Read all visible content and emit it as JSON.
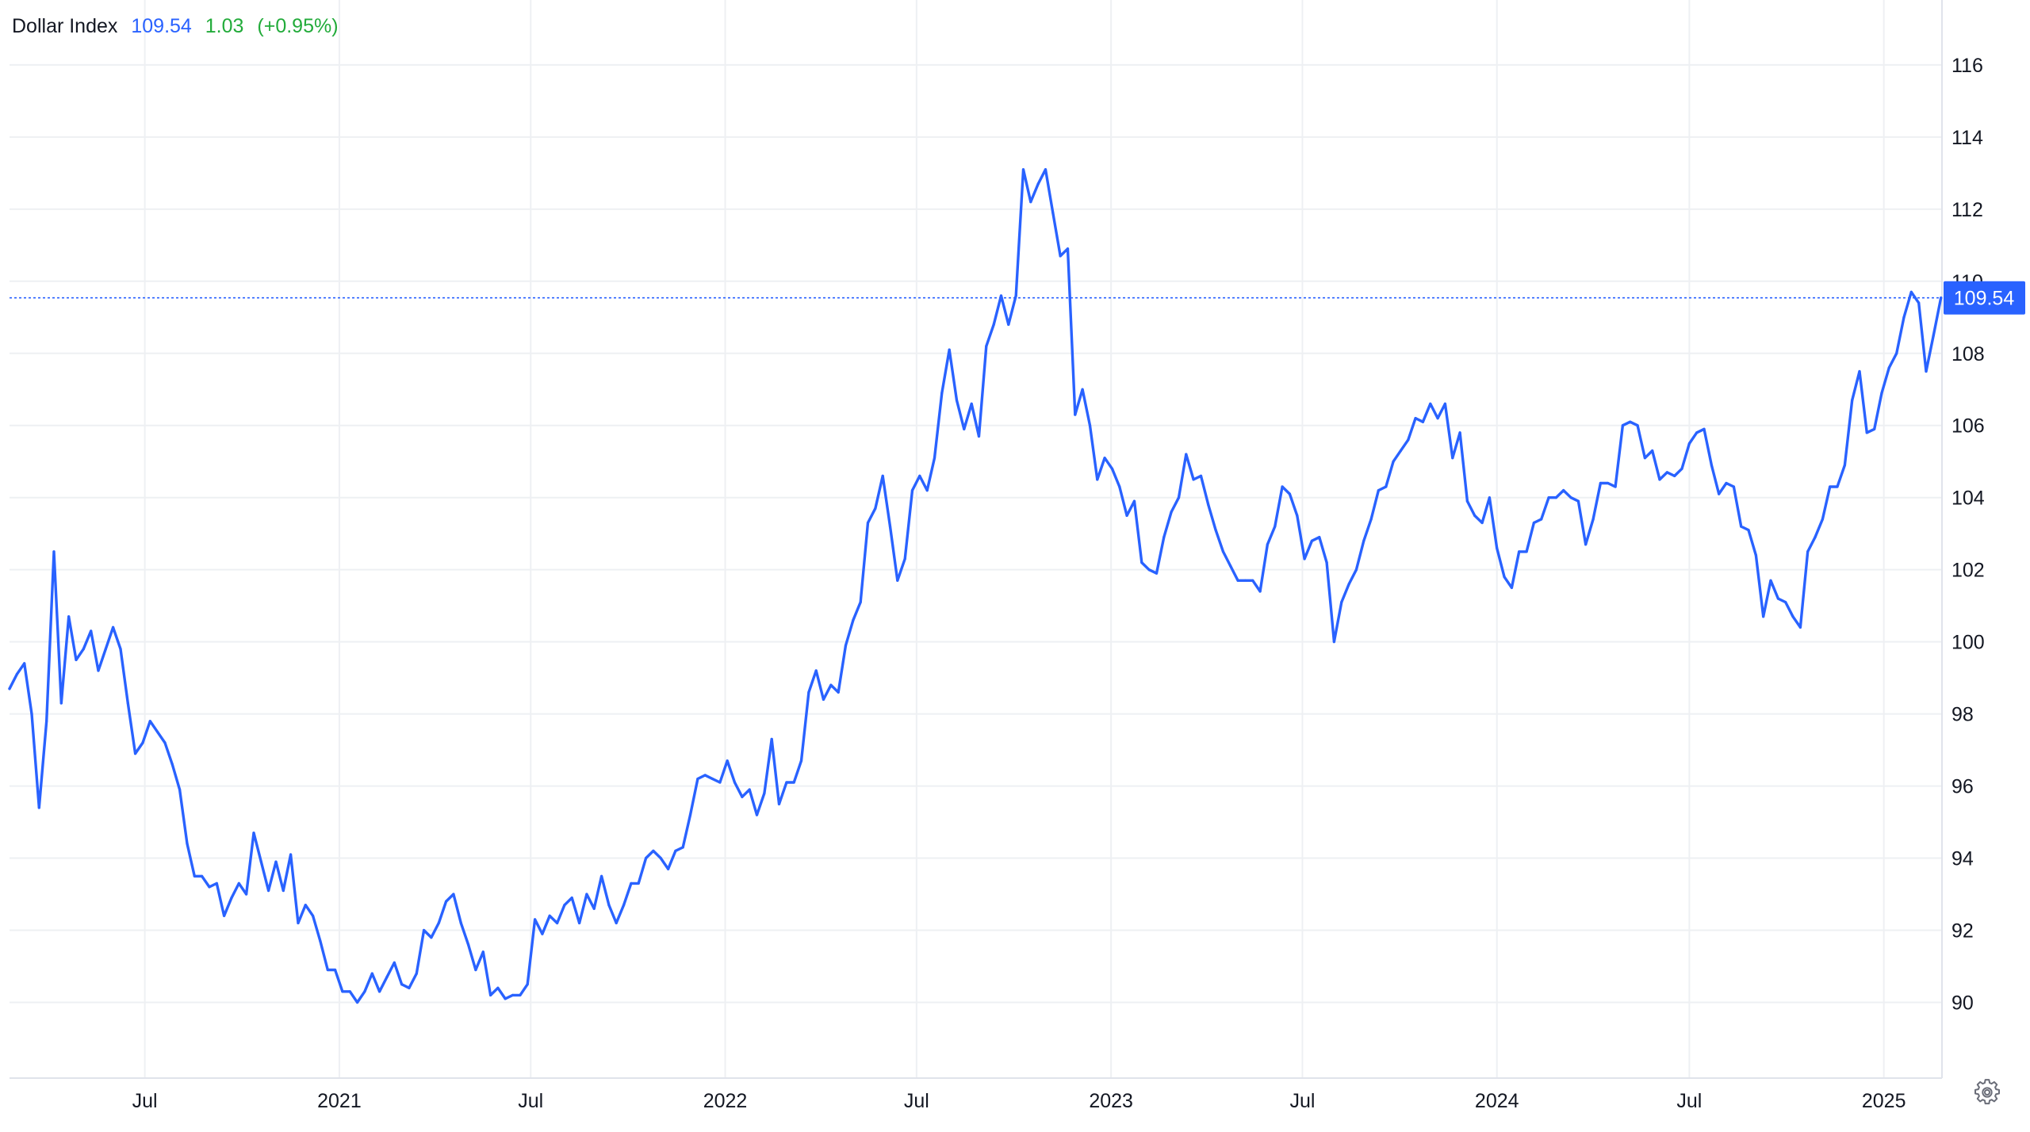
{
  "legend": {
    "name": "Dollar Index",
    "last": "109.54",
    "change": "1.03",
    "change_pct": "(+0.95%)"
  },
  "price_label": "109.54",
  "colors": {
    "line": "#2962ff",
    "grid": "#eef0f3",
    "axis_text": "#131722",
    "positive": "#22ab3a",
    "badge_bg": "#2962ff",
    "badge_text": "#ffffff"
  },
  "settings_icon": "gear-icon",
  "chart_data": {
    "type": "line",
    "title": "",
    "xlabel": "",
    "ylabel": "",
    "ylim": [
      87.9,
      117.8
    ],
    "xlim": [
      "2020-02-24",
      "2025-02-25"
    ],
    "y_ticks": [
      90,
      92,
      94,
      96,
      98,
      100,
      102,
      104,
      106,
      108,
      110,
      112,
      114,
      116
    ],
    "y_tick_labels": [
      "90",
      "92",
      "94",
      "96",
      "98",
      "100",
      "102",
      "104",
      "106",
      "108",
      "110",
      "112",
      "114",
      "116"
    ],
    "x_ticks": [
      {
        "date": "2020-07-01",
        "label": "Jul"
      },
      {
        "date": "2021-01-01",
        "label": "2021"
      },
      {
        "date": "2021-07-01",
        "label": "Jul"
      },
      {
        "date": "2022-01-01",
        "label": "2022"
      },
      {
        "date": "2022-07-01",
        "label": "Jul"
      },
      {
        "date": "2023-01-01",
        "label": "2023"
      },
      {
        "date": "2023-07-01",
        "label": "Jul"
      },
      {
        "date": "2024-01-01",
        "label": "2024"
      },
      {
        "date": "2024-07-01",
        "label": "Jul"
      },
      {
        "date": "2025-01-01",
        "label": "2025"
      }
    ],
    "grid": true,
    "y_axis_side": "right",
    "current_value": 109.54,
    "series": [
      {
        "x": [
          "2020-02-24",
          "2020-03-02",
          "2020-03-09",
          "2020-03-16",
          "2020-03-23",
          "2020-03-30",
          "2020-04-06",
          "2020-04-13",
          "2020-04-20",
          "2020-04-27",
          "2020-05-04",
          "2020-05-11",
          "2020-05-18",
          "2020-05-25",
          "2020-06-01",
          "2020-06-08",
          "2020-06-15",
          "2020-06-22",
          "2020-06-29",
          "2020-07-06",
          "2020-07-13",
          "2020-07-20",
          "2020-07-27",
          "2020-08-03",
          "2020-08-10",
          "2020-08-17",
          "2020-08-24",
          "2020-08-31",
          "2020-09-07",
          "2020-09-14",
          "2020-09-21",
          "2020-09-28",
          "2020-10-05",
          "2020-10-12",
          "2020-10-19",
          "2020-10-26",
          "2020-11-02",
          "2020-11-09",
          "2020-11-16",
          "2020-11-23",
          "2020-11-30",
          "2020-12-07",
          "2020-12-14",
          "2020-12-21",
          "2020-12-28",
          "2021-01-04",
          "2021-01-11",
          "2021-01-18",
          "2021-01-25",
          "2021-02-01",
          "2021-02-08",
          "2021-02-15",
          "2021-02-22",
          "2021-03-01",
          "2021-03-08",
          "2021-03-15",
          "2021-03-22",
          "2021-03-29",
          "2021-04-05",
          "2021-04-12",
          "2021-04-19",
          "2021-04-26",
          "2021-05-03",
          "2021-05-10",
          "2021-05-17",
          "2021-05-24",
          "2021-05-31",
          "2021-06-07",
          "2021-06-14",
          "2021-06-21",
          "2021-06-28",
          "2021-07-05",
          "2021-07-12",
          "2021-07-19",
          "2021-07-26",
          "2021-08-02",
          "2021-08-09",
          "2021-08-16",
          "2021-08-23",
          "2021-08-30",
          "2021-09-06",
          "2021-09-13",
          "2021-09-20",
          "2021-09-27",
          "2021-10-04",
          "2021-10-11",
          "2021-10-18",
          "2021-10-25",
          "2021-11-01",
          "2021-11-08",
          "2021-11-15",
          "2021-11-22",
          "2021-11-29",
          "2021-12-06",
          "2021-12-13",
          "2021-12-20",
          "2021-12-27",
          "2022-01-03",
          "2022-01-10",
          "2022-01-17",
          "2022-01-24",
          "2022-01-31",
          "2022-02-07",
          "2022-02-14",
          "2022-02-21",
          "2022-02-28",
          "2022-03-07",
          "2022-03-14",
          "2022-03-21",
          "2022-03-28",
          "2022-04-04",
          "2022-04-11",
          "2022-04-18",
          "2022-04-25",
          "2022-05-02",
          "2022-05-09",
          "2022-05-16",
          "2022-05-23",
          "2022-05-30",
          "2022-06-06",
          "2022-06-13",
          "2022-06-20",
          "2022-06-27",
          "2022-07-04",
          "2022-07-11",
          "2022-07-18",
          "2022-07-25",
          "2022-08-01",
          "2022-08-08",
          "2022-08-15",
          "2022-08-22",
          "2022-08-29",
          "2022-09-05",
          "2022-09-12",
          "2022-09-19",
          "2022-09-26",
          "2022-10-03",
          "2022-10-10",
          "2022-10-17",
          "2022-10-24",
          "2022-10-31",
          "2022-11-07",
          "2022-11-14",
          "2022-11-21",
          "2022-11-28",
          "2022-12-05",
          "2022-12-12",
          "2022-12-19",
          "2022-12-26",
          "2023-01-02",
          "2023-01-09",
          "2023-01-16",
          "2023-01-23",
          "2023-01-30",
          "2023-02-06",
          "2023-02-13",
          "2023-02-20",
          "2023-02-27",
          "2023-03-06",
          "2023-03-13",
          "2023-03-20",
          "2023-03-27",
          "2023-04-03",
          "2023-04-10",
          "2023-04-17",
          "2023-04-24",
          "2023-05-01",
          "2023-05-08",
          "2023-05-15",
          "2023-05-22",
          "2023-05-29",
          "2023-06-05",
          "2023-06-12",
          "2023-06-19",
          "2023-06-26",
          "2023-07-03",
          "2023-07-10",
          "2023-07-17",
          "2023-07-24",
          "2023-07-31",
          "2023-08-07",
          "2023-08-14",
          "2023-08-21",
          "2023-08-28",
          "2023-09-04",
          "2023-09-11",
          "2023-09-18",
          "2023-09-25",
          "2023-10-02",
          "2023-10-09",
          "2023-10-16",
          "2023-10-23",
          "2023-10-30",
          "2023-11-06",
          "2023-11-13",
          "2023-11-20",
          "2023-11-27",
          "2023-12-04",
          "2023-12-11",
          "2023-12-18",
          "2023-12-25",
          "2024-01-01",
          "2024-01-08",
          "2024-01-15",
          "2024-01-22",
          "2024-01-29",
          "2024-02-05",
          "2024-02-12",
          "2024-02-19",
          "2024-02-26",
          "2024-03-04",
          "2024-03-11",
          "2024-03-18",
          "2024-03-25",
          "2024-04-01",
          "2024-04-08",
          "2024-04-15",
          "2024-04-22",
          "2024-04-29",
          "2024-05-06",
          "2024-05-13",
          "2024-05-20",
          "2024-05-27",
          "2024-06-03",
          "2024-06-10",
          "2024-06-17",
          "2024-06-24",
          "2024-07-01",
          "2024-07-08",
          "2024-07-15",
          "2024-07-22",
          "2024-07-29",
          "2024-08-05",
          "2024-08-12",
          "2024-08-19",
          "2024-08-26",
          "2024-09-02",
          "2024-09-09",
          "2024-09-16",
          "2024-09-23",
          "2024-09-30",
          "2024-10-07",
          "2024-10-14",
          "2024-10-21",
          "2024-10-28",
          "2024-11-04",
          "2024-11-11",
          "2024-11-18",
          "2024-11-25",
          "2024-12-02",
          "2024-12-09",
          "2024-12-16",
          "2024-12-23",
          "2024-12-30",
          "2025-01-06",
          "2025-01-13",
          "2025-01-20",
          "2025-01-27",
          "2025-02-03",
          "2025-02-10",
          "2025-02-17",
          "2025-02-24"
        ],
        "values": [
          98.7,
          99.1,
          99.4,
          98.0,
          95.4,
          97.8,
          102.5,
          98.3,
          100.7,
          99.5,
          99.8,
          100.3,
          99.2,
          99.8,
          100.4,
          99.8,
          98.3,
          96.9,
          97.2,
          97.8,
          97.5,
          97.2,
          96.6,
          95.9,
          94.4,
          93.5,
          93.5,
          93.2,
          93.3,
          92.4,
          92.9,
          93.3,
          93.0,
          94.7,
          93.9,
          93.1,
          93.9,
          93.1,
          94.1,
          92.2,
          92.7,
          92.4,
          91.7,
          90.9,
          90.9,
          90.3,
          90.3,
          90.0,
          90.3,
          90.8,
          90.3,
          90.7,
          91.1,
          90.5,
          90.4,
          90.8,
          92.0,
          91.8,
          92.2,
          92.8,
          93.0,
          92.2,
          91.6,
          90.9,
          91.4,
          90.2,
          90.4,
          90.1,
          90.2,
          90.2,
          90.5,
          92.3,
          91.9,
          92.4,
          92.2,
          92.7,
          92.9,
          92.2,
          93.0,
          92.6,
          93.5,
          92.7,
          92.2,
          92.7,
          93.3,
          93.3,
          94.0,
          94.2,
          94.0,
          93.7,
          94.2,
          94.3,
          95.2,
          96.2,
          96.3,
          96.2,
          96.1,
          96.7,
          96.1,
          95.7,
          95.9,
          95.2,
          95.8,
          97.3,
          95.5,
          96.1,
          96.1,
          96.7,
          98.6,
          99.2,
          98.4,
          98.8,
          98.6,
          99.9,
          100.6,
          101.1,
          103.3,
          103.7,
          104.6,
          103.2,
          101.7,
          102.3,
          104.2,
          104.6,
          104.2,
          105.1,
          106.9,
          108.1,
          106.7,
          105.9,
          106.6,
          105.7,
          108.2,
          108.8,
          109.6,
          108.8,
          109.6,
          113.1,
          112.2,
          112.7,
          113.1,
          111.9,
          110.7,
          110.9,
          106.3,
          107.0,
          106.0,
          104.5,
          105.1,
          104.8,
          104.3,
          103.5,
          103.9,
          102.2,
          102.0,
          101.9,
          102.9,
          103.6,
          104.0,
          105.2,
          104.5,
          104.6,
          103.8,
          103.1,
          102.5,
          102.1,
          101.7,
          101.7,
          101.7,
          101.4,
          102.7,
          103.2,
          104.3,
          104.1,
          103.5,
          102.3,
          102.8,
          102.9,
          102.2,
          100.0,
          101.1,
          101.6,
          102.0,
          102.8,
          103.4,
          104.2,
          104.3,
          105.0,
          105.3,
          105.6,
          106.2,
          106.1,
          106.6,
          106.2,
          106.6,
          105.1,
          105.8,
          103.9,
          103.5,
          103.3,
          104.0,
          102.6,
          101.8,
          101.5,
          102.5,
          102.5,
          103.3,
          103.4,
          104.0,
          104.0,
          104.2,
          104.0,
          103.9,
          102.7,
          103.4,
          104.4,
          104.4,
          104.3,
          106.0,
          106.1,
          106.0,
          105.1,
          105.3,
          104.5,
          104.7,
          104.6,
          104.8,
          105.5,
          105.8,
          105.9,
          104.9,
          104.1,
          104.4,
          104.3,
          103.2,
          103.1,
          102.4,
          100.7,
          101.7,
          101.2,
          101.1,
          100.7,
          100.4,
          102.5,
          102.9,
          103.4,
          104.3,
          104.3,
          104.9,
          106.7,
          107.5,
          105.8,
          105.9,
          106.9,
          107.6,
          108.0,
          109.0,
          109.7,
          109.4,
          107.5,
          108.5,
          109.54
        ]
      }
    ]
  }
}
